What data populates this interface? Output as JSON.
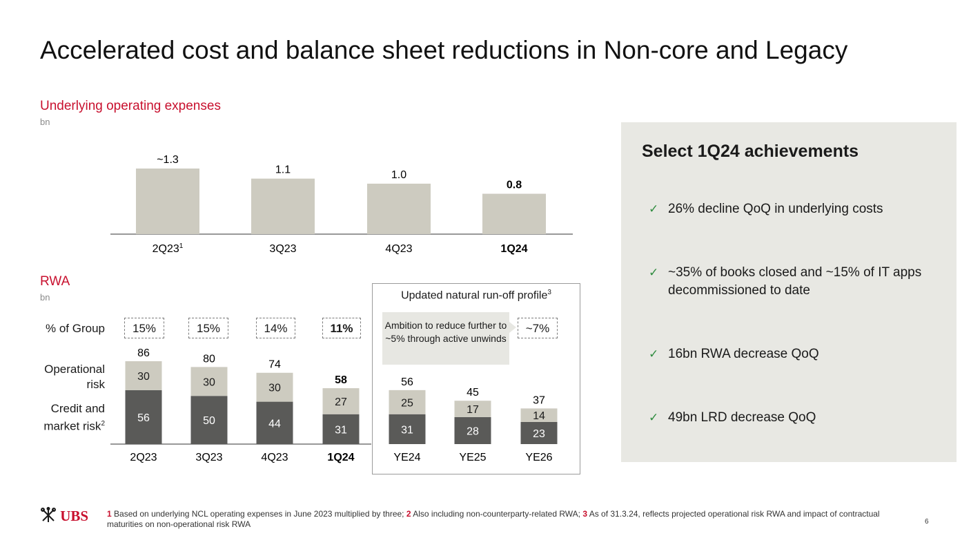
{
  "title": "Accelerated cost and balance sheet reductions in Non-core and Legacy",
  "colors": {
    "accent": "#c8102e",
    "bar_light": "#cdcbc0",
    "bar_dark": "#5a5a58",
    "check": "#2f8c3f",
    "panel_bg": "#e8e8e3"
  },
  "opex": {
    "title": "Underlying operating expenses",
    "unit": "bn"
  },
  "rwa": {
    "title": "RWA",
    "unit": "bn",
    "pct_label": "% of Group",
    "op_risk_label": "Operational risk",
    "credit_label": "Credit and market risk",
    "credit_sup": "2",
    "pct_values": [
      "15%",
      "15%",
      "14%",
      "11%"
    ],
    "runoff_title": "Updated natural run-off profile",
    "runoff_sup": "3",
    "ambition_text": "Ambition to reduce further to ~5% through active unwinds",
    "target_pct": "~7%"
  },
  "chart_data": [
    {
      "type": "bar",
      "title": "Underlying operating expenses",
      "ylabel": "bn",
      "categories": [
        "2Q23",
        "3Q23",
        "4Q23",
        "1Q24"
      ],
      "category_sups": [
        "1",
        "",
        "",
        ""
      ],
      "values": [
        1.3,
        1.1,
        1.0,
        0.8
      ],
      "labels": [
        "~1.3",
        "1.1",
        "1.0",
        "0.8"
      ],
      "bold_index": 3,
      "ylim": [
        0,
        1.3
      ]
    },
    {
      "type": "bar",
      "stacked": true,
      "title": "RWA",
      "ylabel": "bn",
      "categories": [
        "2Q23",
        "3Q23",
        "4Q23",
        "1Q24",
        "YE24",
        "YE25",
        "YE26"
      ],
      "series": [
        {
          "name": "Credit and market risk",
          "values": [
            56,
            50,
            44,
            31,
            31,
            28,
            23
          ]
        },
        {
          "name": "Operational risk",
          "values": [
            30,
            30,
            30,
            27,
            25,
            17,
            14
          ]
        }
      ],
      "totals": [
        86,
        80,
        74,
        58,
        56,
        45,
        37
      ],
      "bold_index": 3,
      "ylim": [
        0,
        86
      ]
    }
  ],
  "panel": {
    "title": "Select 1Q24 achievements",
    "check": "✓",
    "items": [
      "26% decline QoQ in underlying costs",
      "~35% of books closed and ~15% of IT apps decommissioned to date",
      "16bn RWA decrease QoQ",
      "49bn LRD decrease QoQ"
    ]
  },
  "footer": {
    "n1": "1",
    "t1": " Based on underlying NCL operating expenses in June 2023 multiplied by three; ",
    "n2": "2",
    "t2": " Also including non-counterparty-related RWA; ",
    "n3": "3",
    "t3": " As of 31.3.24, reflects projected operational risk RWA and impact of contractual maturities on non-operational risk RWA"
  },
  "logo": {
    "text": "UBS",
    "icon": "keys-icon"
  },
  "page_number": "6"
}
